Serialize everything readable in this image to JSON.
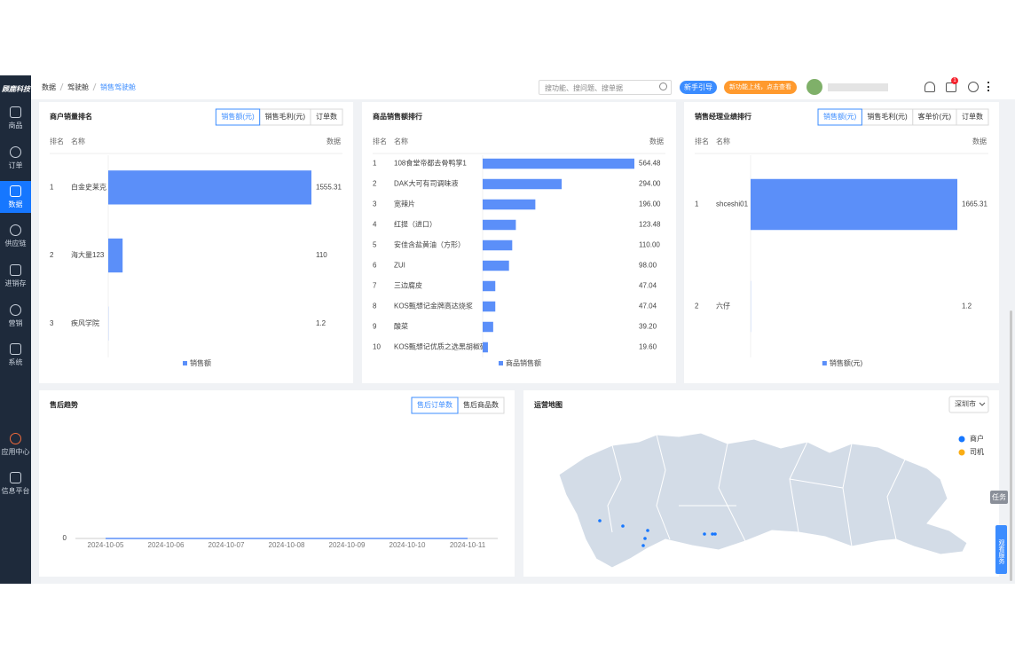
{
  "sidebar": {
    "logo": "顾鹿科技",
    "menu": [
      "商品",
      "订单",
      "数据",
      "供应链",
      "进销存",
      "营销",
      "系统",
      "应用中心",
      "信息平台"
    ],
    "active_index": 2
  },
  "topbar": {
    "breadcrumb": [
      "数据",
      "驾驶舱",
      "销售驾驶舱"
    ],
    "search_placeholder": "搜功能、搜问题、搜单据",
    "guide_button": "新手引导",
    "new_feature_button": "新功能上线，点击查看",
    "notifications": 1
  },
  "floating": {
    "task": "任务",
    "service": "观看服务"
  },
  "chart_data": [
    {
      "type": "rank",
      "title": "商户销量排名",
      "tabs": [
        "销售额(元)",
        "销售毛利(元)",
        "订单数"
      ],
      "header": [
        "排名",
        "名称",
        "数据"
      ],
      "ranks": [
        1,
        2,
        3
      ],
      "categories": [
        "白金史莱克",
        "海大量123",
        "疾风学院"
      ],
      "values": [
        1555.31,
        110,
        1.2
      ],
      "legend": "销售额",
      "color": "#5b8ff9",
      "xlim": [
        0,
        1555.31
      ]
    },
    {
      "type": "rank",
      "title": "商品销售额排行",
      "header": [
        "排名",
        "名称",
        "数据"
      ],
      "ranks": [
        1,
        2,
        3,
        4,
        5,
        6,
        7,
        8,
        9,
        10
      ],
      "categories": [
        "108食堂帝都去骨鸭掌1",
        "DAK大可有司调味液",
        "宽辣片",
        "红提（进口）",
        "安佳含盐黄油（方形）",
        "ZUI",
        "三边腐皮",
        "KOS甄想记金牌高达烧浆",
        "酸菜",
        "KOS甄想记优质之选黑胡椒碎"
      ],
      "values": [
        564.48,
        294,
        196,
        123.48,
        110,
        98,
        47.04,
        47.04,
        39.2,
        19.6
      ],
      "value_labels": [
        "564.48",
        "294.00",
        "196.00",
        "123.48",
        "110.00",
        "98.00",
        "47.04",
        "47.04",
        "39.20",
        "19.60"
      ],
      "legend": "商品销售额",
      "color": "#5b8ff9",
      "xlim": [
        0,
        564.48
      ]
    },
    {
      "type": "rank",
      "title": "销售经理业绩排行",
      "tabs": [
        "销售额(元)",
        "销售毛利(元)",
        "客单价(元)",
        "订单数"
      ],
      "header": [
        "排名",
        "名称",
        "数据"
      ],
      "ranks": [
        1,
        2
      ],
      "categories": [
        "shceshi01",
        "六仔"
      ],
      "values": [
        1665.31,
        1.2
      ],
      "legend": "销售额(元)",
      "color": "#5b8ff9",
      "xlim": [
        0,
        1665.31
      ]
    },
    {
      "type": "line",
      "title": "售后趋势",
      "tabs": [
        "售后订单数",
        "售后商品数"
      ],
      "categories": [
        "2024-10-05",
        "2024-10-06",
        "2024-10-07",
        "2024-10-08",
        "2024-10-09",
        "2024-10-10",
        "2024-10-11"
      ],
      "values": [
        0,
        0,
        0,
        0,
        0,
        0,
        0
      ],
      "color": "#5b8ff9",
      "ylim": [
        0,
        1
      ],
      "yticks": [
        0
      ]
    },
    {
      "type": "map",
      "title": "运营地图",
      "dropdown": "深圳市",
      "series": [
        {
          "name": "商户",
          "color": "#1677ff"
        },
        {
          "name": "司机",
          "color": "#faad14"
        }
      ]
    }
  ]
}
